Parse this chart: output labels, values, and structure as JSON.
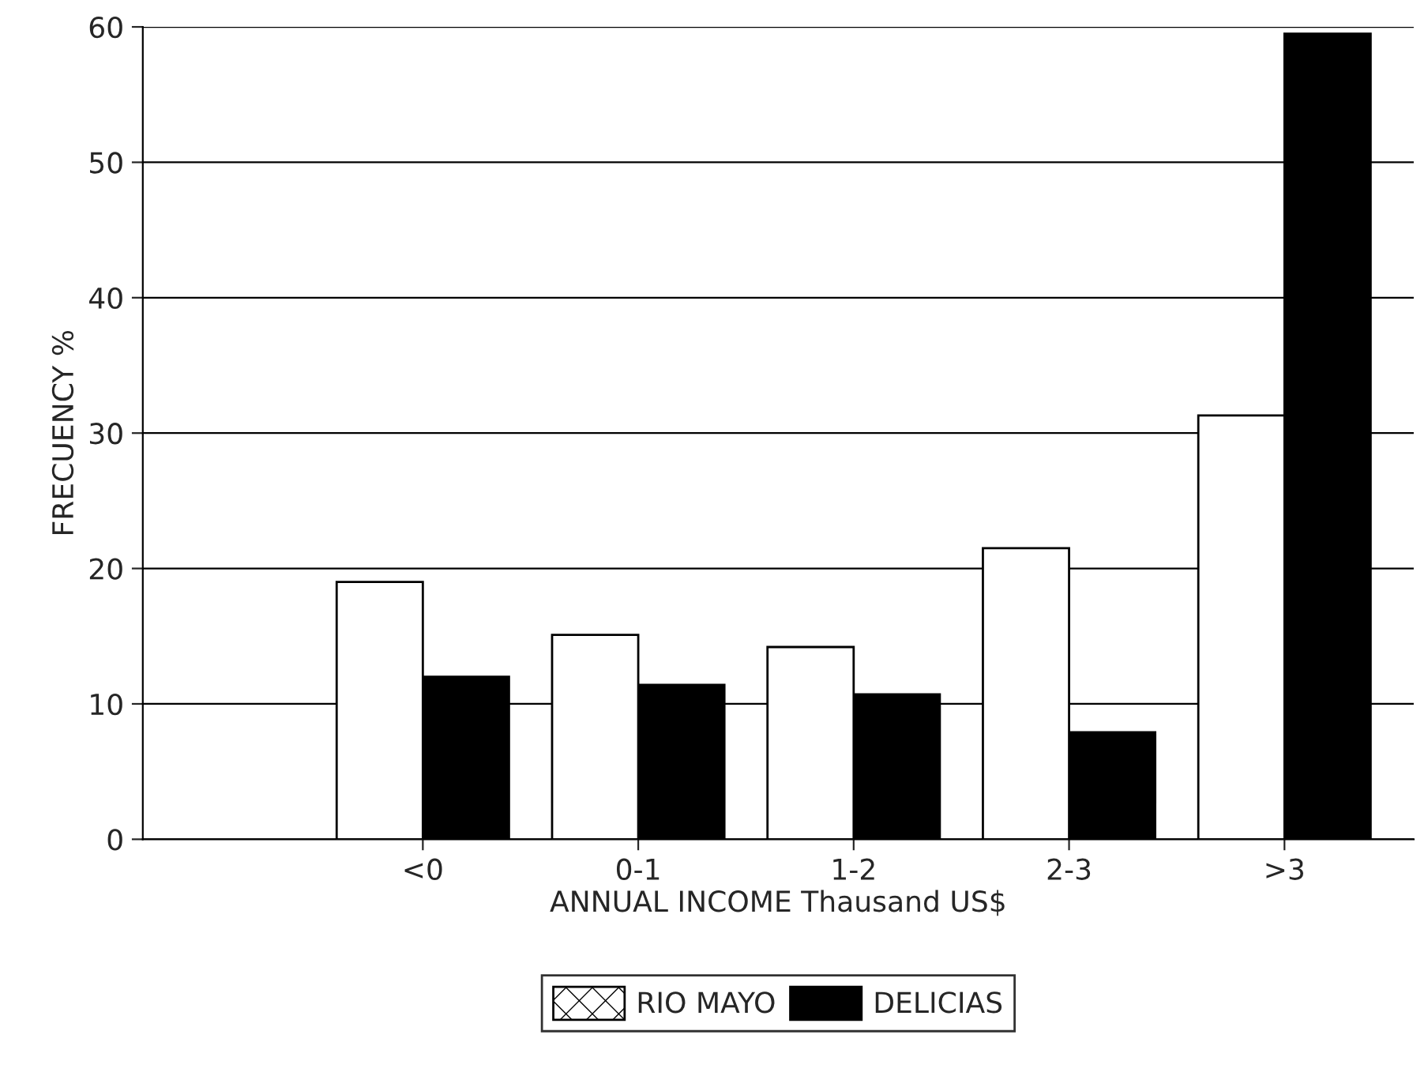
{
  "chart_data": {
    "type": "bar",
    "xlabel": "ANNUAL INCOME Thausand US$",
    "ylabel": "FRECUENCY %",
    "categories": [
      "<0",
      "0-1",
      "1-2",
      "2-3",
      ">3"
    ],
    "series": [
      {
        "name": "RIO MAYO",
        "color": "#ffffff",
        "values": [
          19,
          15.1,
          14.2,
          21.5,
          31.3
        ]
      },
      {
        "name": "DELICIAS",
        "color": "#000000",
        "values": [
          12,
          11.4,
          10.7,
          7.9,
          59.5
        ]
      }
    ],
    "ylim": [
      0,
      60
    ],
    "yticks": [
      0,
      10,
      20,
      30,
      40,
      50,
      60
    ],
    "grid": "y",
    "legend": "bottom"
  }
}
